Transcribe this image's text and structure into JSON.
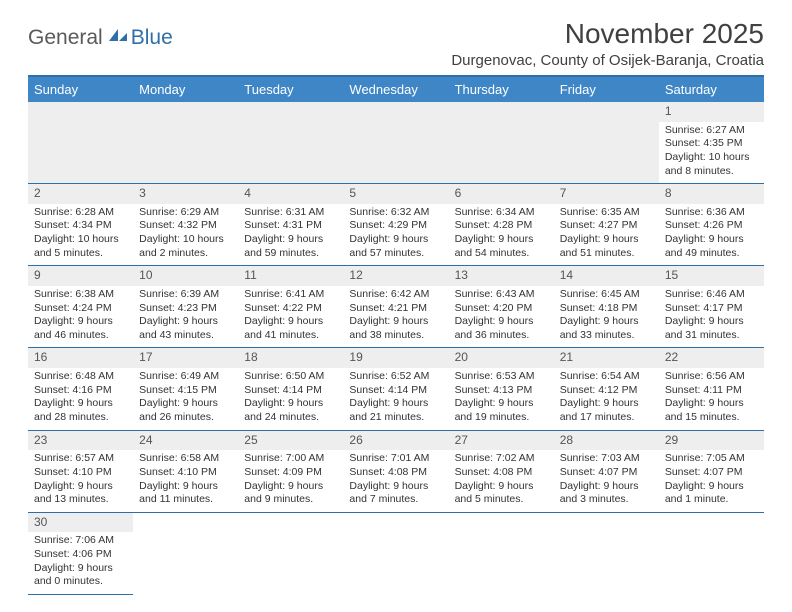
{
  "logo": {
    "word1": "General",
    "word2": "Blue"
  },
  "title": "November 2025",
  "location": "Durgenovac, County of Osijek-Baranja, Croatia",
  "colors": {
    "header_bg": "#3f86c6",
    "accent": "#2f6fa8",
    "stripe": "#eeeeee",
    "text": "#333333"
  },
  "day_headers": [
    "Sunday",
    "Monday",
    "Tuesday",
    "Wednesday",
    "Thursday",
    "Friday",
    "Saturday"
  ],
  "weeks": [
    [
      null,
      null,
      null,
      null,
      null,
      null,
      {
        "n": "1",
        "sr": "6:27 AM",
        "ss": "4:35 PM",
        "dl": "10 hours and 8 minutes."
      }
    ],
    [
      {
        "n": "2",
        "sr": "6:28 AM",
        "ss": "4:34 PM",
        "dl": "10 hours and 5 minutes."
      },
      {
        "n": "3",
        "sr": "6:29 AM",
        "ss": "4:32 PM",
        "dl": "10 hours and 2 minutes."
      },
      {
        "n": "4",
        "sr": "6:31 AM",
        "ss": "4:31 PM",
        "dl": "9 hours and 59 minutes."
      },
      {
        "n": "5",
        "sr": "6:32 AM",
        "ss": "4:29 PM",
        "dl": "9 hours and 57 minutes."
      },
      {
        "n": "6",
        "sr": "6:34 AM",
        "ss": "4:28 PM",
        "dl": "9 hours and 54 minutes."
      },
      {
        "n": "7",
        "sr": "6:35 AM",
        "ss": "4:27 PM",
        "dl": "9 hours and 51 minutes."
      },
      {
        "n": "8",
        "sr": "6:36 AM",
        "ss": "4:26 PM",
        "dl": "9 hours and 49 minutes."
      }
    ],
    [
      {
        "n": "9",
        "sr": "6:38 AM",
        "ss": "4:24 PM",
        "dl": "9 hours and 46 minutes."
      },
      {
        "n": "10",
        "sr": "6:39 AM",
        "ss": "4:23 PM",
        "dl": "9 hours and 43 minutes."
      },
      {
        "n": "11",
        "sr": "6:41 AM",
        "ss": "4:22 PM",
        "dl": "9 hours and 41 minutes."
      },
      {
        "n": "12",
        "sr": "6:42 AM",
        "ss": "4:21 PM",
        "dl": "9 hours and 38 minutes."
      },
      {
        "n": "13",
        "sr": "6:43 AM",
        "ss": "4:20 PM",
        "dl": "9 hours and 36 minutes."
      },
      {
        "n": "14",
        "sr": "6:45 AM",
        "ss": "4:18 PM",
        "dl": "9 hours and 33 minutes."
      },
      {
        "n": "15",
        "sr": "6:46 AM",
        "ss": "4:17 PM",
        "dl": "9 hours and 31 minutes."
      }
    ],
    [
      {
        "n": "16",
        "sr": "6:48 AM",
        "ss": "4:16 PM",
        "dl": "9 hours and 28 minutes."
      },
      {
        "n": "17",
        "sr": "6:49 AM",
        "ss": "4:15 PM",
        "dl": "9 hours and 26 minutes."
      },
      {
        "n": "18",
        "sr": "6:50 AM",
        "ss": "4:14 PM",
        "dl": "9 hours and 24 minutes."
      },
      {
        "n": "19",
        "sr": "6:52 AM",
        "ss": "4:14 PM",
        "dl": "9 hours and 21 minutes."
      },
      {
        "n": "20",
        "sr": "6:53 AM",
        "ss": "4:13 PM",
        "dl": "9 hours and 19 minutes."
      },
      {
        "n": "21",
        "sr": "6:54 AM",
        "ss": "4:12 PM",
        "dl": "9 hours and 17 minutes."
      },
      {
        "n": "22",
        "sr": "6:56 AM",
        "ss": "4:11 PM",
        "dl": "9 hours and 15 minutes."
      }
    ],
    [
      {
        "n": "23",
        "sr": "6:57 AM",
        "ss": "4:10 PM",
        "dl": "9 hours and 13 minutes."
      },
      {
        "n": "24",
        "sr": "6:58 AM",
        "ss": "4:10 PM",
        "dl": "9 hours and 11 minutes."
      },
      {
        "n": "25",
        "sr": "7:00 AM",
        "ss": "4:09 PM",
        "dl": "9 hours and 9 minutes."
      },
      {
        "n": "26",
        "sr": "7:01 AM",
        "ss": "4:08 PM",
        "dl": "9 hours and 7 minutes."
      },
      {
        "n": "27",
        "sr": "7:02 AM",
        "ss": "4:08 PM",
        "dl": "9 hours and 5 minutes."
      },
      {
        "n": "28",
        "sr": "7:03 AM",
        "ss": "4:07 PM",
        "dl": "9 hours and 3 minutes."
      },
      {
        "n": "29",
        "sr": "7:05 AM",
        "ss": "4:07 PM",
        "dl": "9 hours and 1 minute."
      }
    ],
    [
      {
        "n": "30",
        "sr": "7:06 AM",
        "ss": "4:06 PM",
        "dl": "9 hours and 0 minutes."
      },
      null,
      null,
      null,
      null,
      null,
      null
    ]
  ],
  "labels": {
    "sunrise": "Sunrise:",
    "sunset": "Sunset:",
    "daylight": "Daylight:"
  }
}
